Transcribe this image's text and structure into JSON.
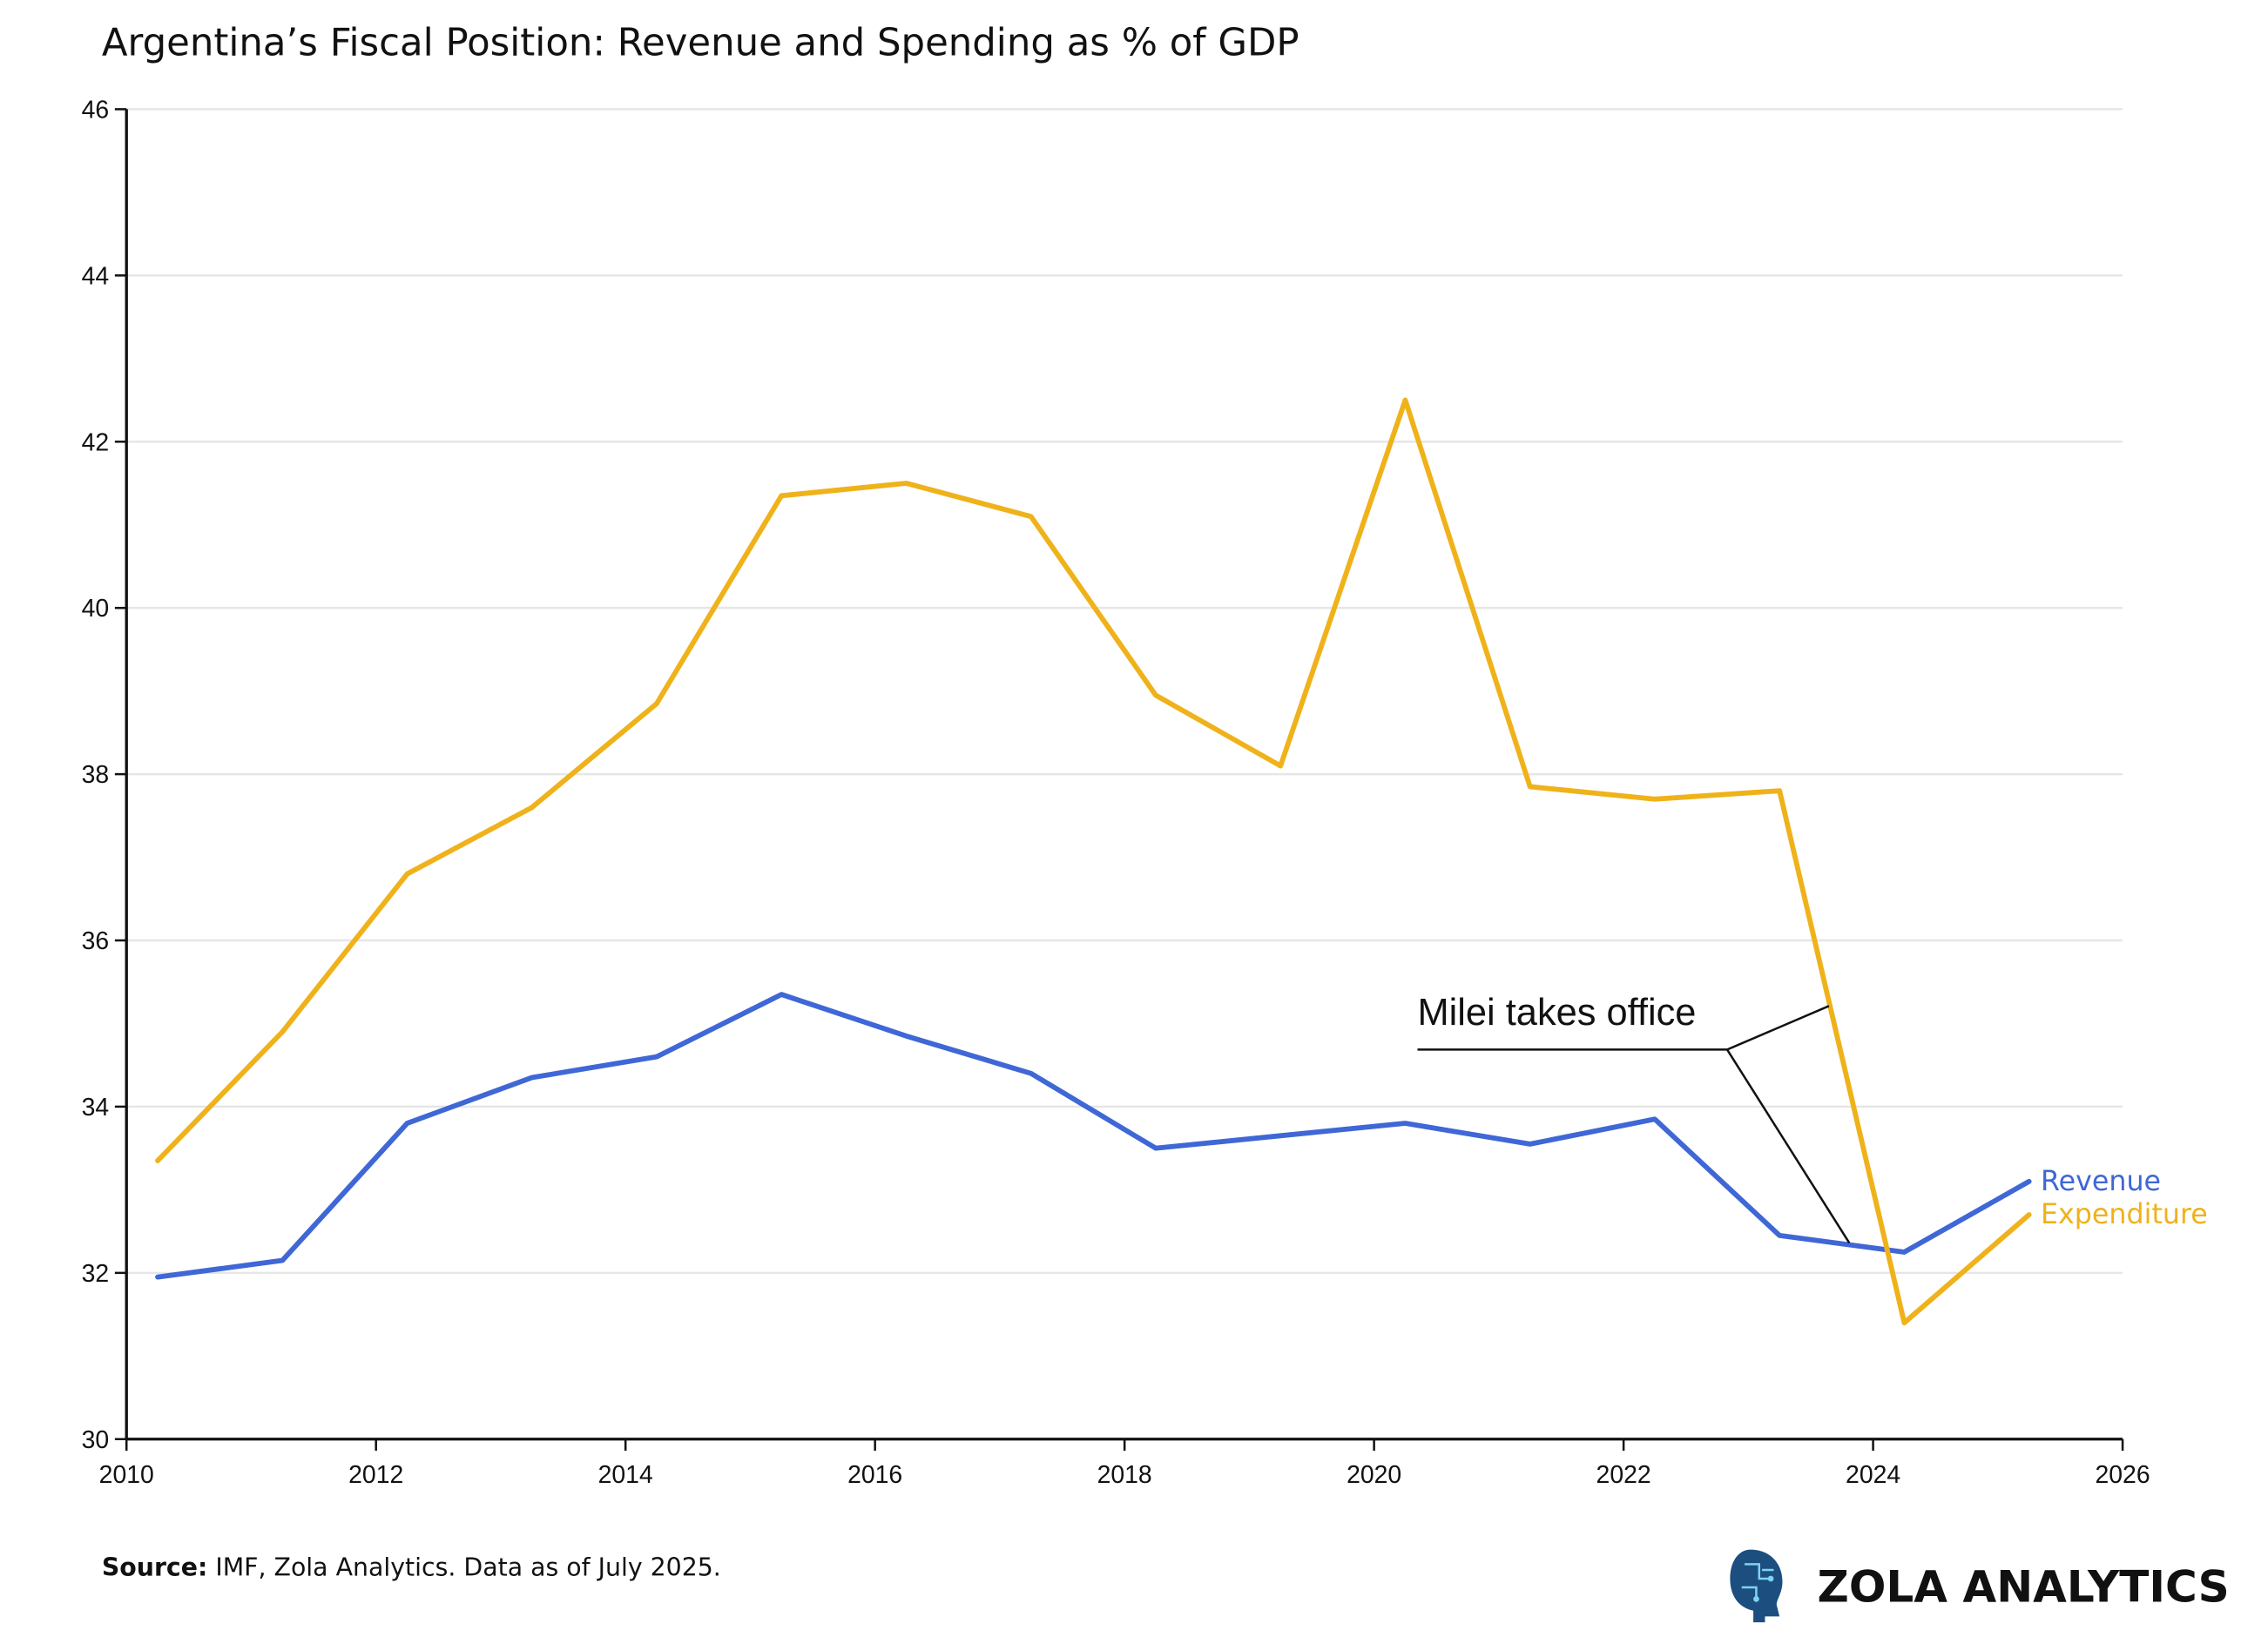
{
  "chart_data": {
    "type": "line",
    "title": "Argentina’s Fiscal Position: Revenue and Spending as % of GDP",
    "xlabel": "",
    "ylabel": "",
    "xlim": [
      2010,
      2026
    ],
    "ylim": [
      30,
      46
    ],
    "x_ticks": [
      "2010",
      "2012",
      "2014",
      "2016",
      "2018",
      "2020",
      "2022",
      "2024",
      "2026"
    ],
    "y_ticks": [
      "30",
      "32",
      "34",
      "36",
      "38",
      "40",
      "42",
      "44",
      "46"
    ],
    "grid": "horizontal",
    "legend": "direct labels at line ends (right)",
    "x": [
      2010,
      2011,
      2012,
      2013,
      2014,
      2015,
      2016,
      2017,
      2018,
      2019,
      2020,
      2021,
      2022,
      2023,
      2024,
      2025
    ],
    "series": [
      {
        "name": "Revenue",
        "color": "#3f67d6",
        "values": [
          31.95,
          32.15,
          33.8,
          34.35,
          34.6,
          35.35,
          34.85,
          34.4,
          33.5,
          33.65,
          33.8,
          33.55,
          33.85,
          32.45,
          32.25,
          33.1
        ]
      },
      {
        "name": "Expenditure",
        "color": "#efb21a",
        "values": [
          33.35,
          34.9,
          36.8,
          37.6,
          38.85,
          41.35,
          41.5,
          41.1,
          38.95,
          38.1,
          42.5,
          37.85,
          37.7,
          37.8,
          31.4,
          32.7
        ]
      }
    ],
    "annotation": {
      "text": "Milei takes office"
    }
  },
  "footer": {
    "source_label": "Source:",
    "source_text": " IMF, Zola Analytics. Data as of July 2025."
  },
  "brand": {
    "name": "ZOLA ANALYTICS",
    "icon": "head-circuit-icon"
  }
}
